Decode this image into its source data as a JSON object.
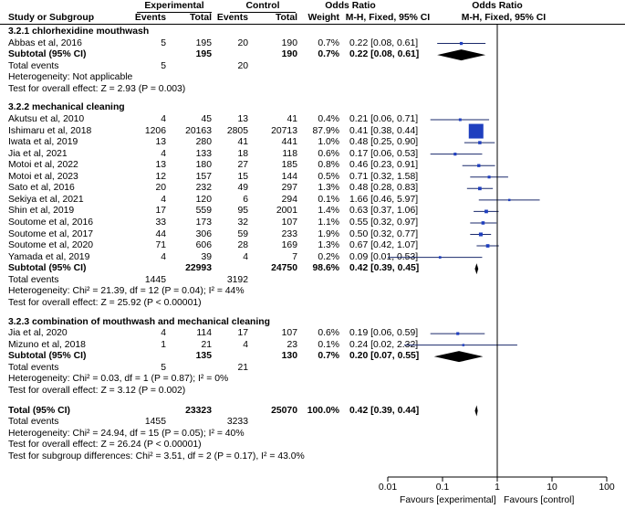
{
  "header": {
    "experimental": "Experimental",
    "control": "Control",
    "odds_ratio": "Odds Ratio",
    "odds_ratio_right": "Odds Ratio",
    "study_or_subgroup": "Study or Subgroup",
    "events_e": "Events",
    "total_e": "Total",
    "events_c": "Events",
    "total_c": "Total",
    "weight": "Weight",
    "method": "M-H, Fixed, 95% CI",
    "method_right": "M-H, Fixed, 95% CI"
  },
  "subgroups": [
    {
      "title": "3.2.1 chlorhexidine mouthwash",
      "studies": [
        {
          "name": "Abbas et al, 2016",
          "e_events": "5",
          "e_total": "195",
          "c_events": "20",
          "c_total": "190",
          "weight": "0.7%",
          "ci_text": "0.22 [0.08, 0.61]",
          "or": 0.22,
          "lo": 0.08,
          "hi": 0.61,
          "w": 0.7
        }
      ],
      "subtotal": {
        "label": "Subtotal (95% CI)",
        "e_total": "195",
        "c_total": "190",
        "weight": "0.7%",
        "ci_text": "0.22 [0.08, 0.61]",
        "or": 0.22,
        "lo": 0.08,
        "hi": 0.61
      },
      "total_events": {
        "label": "Total events",
        "e": "5",
        "c": "20"
      },
      "heterogeneity": "Heterogeneity: Not applicable",
      "overall": "Test for overall effect: Z = 2.93 (P = 0.003)"
    },
    {
      "title": "3.2.2 mechanical cleaning",
      "studies": [
        {
          "name": "Akutsu et al, 2010",
          "e_events": "4",
          "e_total": "45",
          "c_events": "13",
          "c_total": "41",
          "weight": "0.4%",
          "ci_text": "0.21 [0.06, 0.71]",
          "or": 0.21,
          "lo": 0.06,
          "hi": 0.71,
          "w": 0.4
        },
        {
          "name": "Ishimaru et al, 2018",
          "e_events": "1206",
          "e_total": "20163",
          "c_events": "2805",
          "c_total": "20713",
          "weight": "87.9%",
          "ci_text": "0.41 [0.38, 0.44]",
          "or": 0.41,
          "lo": 0.38,
          "hi": 0.44,
          "w": 87.9
        },
        {
          "name": "Iwata et al, 2019",
          "e_events": "13",
          "e_total": "280",
          "c_events": "41",
          "c_total": "441",
          "weight": "1.0%",
          "ci_text": "0.48 [0.25, 0.90]",
          "or": 0.48,
          "lo": 0.25,
          "hi": 0.9,
          "w": 1.0
        },
        {
          "name": "Jia et al, 2021",
          "e_events": "4",
          "e_total": "133",
          "c_events": "18",
          "c_total": "118",
          "weight": "0.6%",
          "ci_text": "0.17 [0.06, 0.53]",
          "or": 0.17,
          "lo": 0.06,
          "hi": 0.53,
          "w": 0.6
        },
        {
          "name": "Motoi et al, 2022",
          "e_events": "13",
          "e_total": "180",
          "c_events": "27",
          "c_total": "185",
          "weight": "0.8%",
          "ci_text": "0.46 [0.23, 0.91]",
          "or": 0.46,
          "lo": 0.23,
          "hi": 0.91,
          "w": 0.8
        },
        {
          "name": "Motoi et al, 2023",
          "e_events": "12",
          "e_total": "157",
          "c_events": "15",
          "c_total": "144",
          "weight": "0.5%",
          "ci_text": "0.71 [0.32, 1.58]",
          "or": 0.71,
          "lo": 0.32,
          "hi": 1.58,
          "w": 0.5
        },
        {
          "name": "Sato et al, 2016",
          "e_events": "20",
          "e_total": "232",
          "c_events": "49",
          "c_total": "297",
          "weight": "1.3%",
          "ci_text": "0.48 [0.28, 0.83]",
          "or": 0.48,
          "lo": 0.28,
          "hi": 0.83,
          "w": 1.3
        },
        {
          "name": "Sekiya et al, 2021",
          "e_events": "4",
          "e_total": "120",
          "c_events": "6",
          "c_total": "294",
          "weight": "0.1%",
          "ci_text": "1.66 [0.46, 5.97]",
          "or": 1.66,
          "lo": 0.46,
          "hi": 5.97,
          "w": 0.1
        },
        {
          "name": "Shin et al, 2019",
          "e_events": "17",
          "e_total": "559",
          "c_events": "95",
          "c_total": "2001",
          "weight": "1.4%",
          "ci_text": "0.63 [0.37, 1.06]",
          "or": 0.63,
          "lo": 0.37,
          "hi": 1.06,
          "w": 1.4
        },
        {
          "name": "Soutome et al, 2016",
          "e_events": "33",
          "e_total": "173",
          "c_events": "32",
          "c_total": "107",
          "weight": "1.1%",
          "ci_text": "0.55 [0.32, 0.97]",
          "or": 0.55,
          "lo": 0.32,
          "hi": 0.97,
          "w": 1.1
        },
        {
          "name": "Soutome et al, 2017",
          "e_events": "44",
          "e_total": "306",
          "c_events": "59",
          "c_total": "233",
          "weight": "1.9%",
          "ci_text": "0.50 [0.32, 0.77]",
          "or": 0.5,
          "lo": 0.32,
          "hi": 0.77,
          "w": 1.9
        },
        {
          "name": "Soutome et al, 2020",
          "e_events": "71",
          "e_total": "606",
          "c_events": "28",
          "c_total": "169",
          "weight": "1.3%",
          "ci_text": "0.67 [0.42, 1.07]",
          "or": 0.67,
          "lo": 0.42,
          "hi": 1.07,
          "w": 1.3
        },
        {
          "name": "Yamada et al, 2019",
          "e_events": "4",
          "e_total": "39",
          "c_events": "4",
          "c_total": "7",
          "weight": "0.2%",
          "ci_text": "0.09 [0.01, 0.53]",
          "or": 0.09,
          "lo": 0.01,
          "hi": 0.53,
          "w": 0.2
        }
      ],
      "subtotal": {
        "label": "Subtotal (95% CI)",
        "e_total": "22993",
        "c_total": "24750",
        "weight": "98.6%",
        "ci_text": "0.42 [0.39, 0.45]",
        "or": 0.42,
        "lo": 0.39,
        "hi": 0.45
      },
      "total_events": {
        "label": "Total events",
        "e": "1445",
        "c": "3192"
      },
      "heterogeneity": "Heterogeneity: Chi² = 21.39, df = 12 (P = 0.04); I² = 44%",
      "overall": "Test for overall effect: Z = 25.92 (P < 0.00001)"
    },
    {
      "title": "3.2.3 combination of mouthwash and mechanical cleaning",
      "studies": [
        {
          "name": "Jia et al, 2020",
          "e_events": "4",
          "e_total": "114",
          "c_events": "17",
          "c_total": "107",
          "weight": "0.6%",
          "ci_text": "0.19 [0.06, 0.59]",
          "or": 0.19,
          "lo": 0.06,
          "hi": 0.59,
          "w": 0.6
        },
        {
          "name": "Mizuno et al, 2018",
          "e_events": "1",
          "e_total": "21",
          "c_events": "4",
          "c_total": "23",
          "weight": "0.1%",
          "ci_text": "0.24 [0.02, 2.32]",
          "or": 0.24,
          "lo": 0.02,
          "hi": 2.32,
          "w": 0.1
        }
      ],
      "subtotal": {
        "label": "Subtotal (95% CI)",
        "e_total": "135",
        "c_total": "130",
        "weight": "0.7%",
        "ci_text": "0.20 [0.07, 0.55]",
        "or": 0.2,
        "lo": 0.07,
        "hi": 0.55
      },
      "total_events": {
        "label": "Total events",
        "e": "5",
        "c": "21"
      },
      "heterogeneity": "Heterogeneity: Chi² = 0.03, df = 1 (P = 0.87); I² = 0%",
      "overall": "Test for overall effect: Z = 3.12 (P = 0.002)"
    }
  ],
  "total": {
    "label": "Total (95% CI)",
    "e_total": "23323",
    "c_total": "25070",
    "weight": "100.0%",
    "ci_text": "0.42 [0.39, 0.44]",
    "or": 0.42,
    "lo": 0.39,
    "hi": 0.44,
    "events_label": "Total events",
    "e_events": "1455",
    "c_events": "3233",
    "heterogeneity": "Heterogeneity: Chi² = 24.94, df = 15 (P = 0.05); I² = 40%",
    "overall": "Test for overall effect: Z = 26.24 (P < 0.00001)",
    "subgroup_diff": "Test for subgroup differences: Chi² = 3.51, df = 2 (P = 0.17), I² = 43.0%"
  },
  "chart_data": {
    "type": "forest",
    "title": "Odds Ratio M-H, Fixed, 95% CI",
    "x_scale": "log",
    "xlim": [
      0.01,
      100
    ],
    "ticks": [
      "0.01",
      "0.1",
      "1",
      "10",
      "100"
    ],
    "favours_left": "Favours [experimental]",
    "favours_right": "Favours [control]",
    "reference_line": 1,
    "colors": {
      "square": "#1f3fbf",
      "line": "#1a2a6b",
      "diamond": "#000000"
    }
  }
}
